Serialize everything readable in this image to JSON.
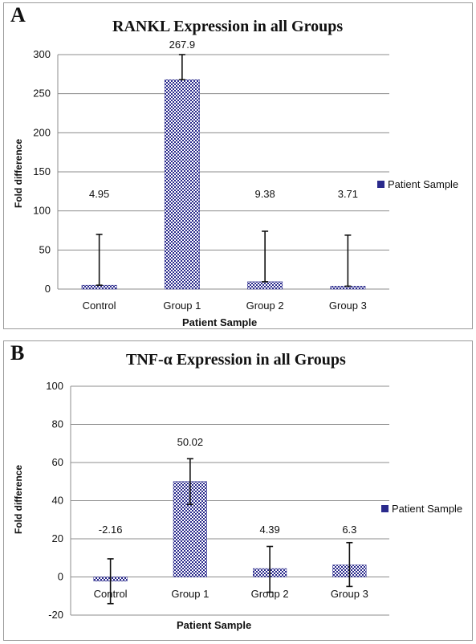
{
  "chart_data": [
    {
      "panel_label": "A",
      "type": "bar",
      "title": "RANKL Expression in all Groups",
      "xlabel": "Patient Sample",
      "ylabel": "Fold difference",
      "categories": [
        "Control",
        "Group 1",
        "Group 2",
        "Group 3"
      ],
      "series": [
        {
          "name": "Patient Sample",
          "values": [
            4.95,
            267.9,
            9.38,
            3.71
          ],
          "error_low": [
            4.95,
            267.9,
            9.38,
            3.71
          ],
          "error_high": [
            70,
            300,
            74,
            69
          ]
        }
      ],
      "data_labels": [
        "4.95",
        "267.9",
        "9.38",
        "3.71"
      ],
      "ylim": [
        0,
        300
      ],
      "yticks": [
        0,
        50,
        100,
        150,
        200,
        250,
        300
      ],
      "grid": true,
      "legend_position": "right",
      "bar_color": "#2a2a8c"
    },
    {
      "panel_label": "B",
      "type": "bar",
      "title": "TNF-α Expression in all Groups",
      "xlabel": "Patient Sample",
      "ylabel": "Fold difference",
      "categories": [
        "Control",
        "Group 1",
        "Group 2",
        "Group 3"
      ],
      "series": [
        {
          "name": "Patient Sample",
          "values": [
            -2.16,
            50.02,
            4.39,
            6.3
          ],
          "error_low": [
            -14,
            38,
            -8,
            -5
          ],
          "error_high": [
            9.5,
            62,
            16,
            18
          ]
        }
      ],
      "data_labels": [
        "-2.16",
        "50.02",
        "4.39",
        "6.3"
      ],
      "ylim": [
        -20,
        100
      ],
      "yticks": [
        -20,
        0,
        20,
        40,
        60,
        80,
        100
      ],
      "grid": true,
      "legend_position": "right",
      "bar_color": "#2a2a8c"
    }
  ]
}
